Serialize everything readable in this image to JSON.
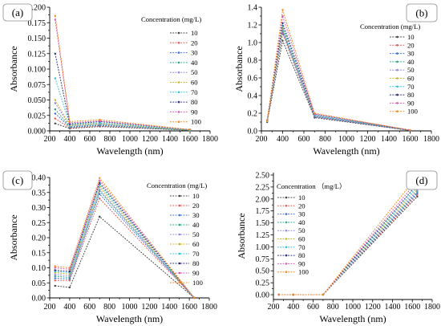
{
  "chart_data": [
    {
      "label": "(a)",
      "type": "line",
      "xlabel": "Wavelength (nm)",
      "ylabel": "Absorbance",
      "xlim": [
        200,
        1800
      ],
      "ylim": [
        0,
        0.2
      ],
      "xticks": [
        "200",
        "400",
        "600",
        "800",
        "1000",
        "1200",
        "1400",
        "1600",
        "1800"
      ],
      "yticks": [
        "0.000",
        "0.025",
        "0.050",
        "0.075",
        "0.100",
        "0.125",
        "0.150",
        "0.175",
        "0.200"
      ],
      "grid": false,
      "legend_title": "Concentration (mg/L)",
      "legend_position": "top-right",
      "x": [
        254,
        400,
        700,
        1600
      ],
      "series": [
        {
          "name": "10",
          "color": "#404040",
          "values": [
            0.012,
            0.004,
            0.007,
            0.001
          ]
        },
        {
          "name": "20",
          "color": "#e05a5a",
          "values": [
            0.02,
            0.005,
            0.008,
            0.001
          ]
        },
        {
          "name": "30",
          "color": "#3f6fd6",
          "values": [
            0.028,
            0.006,
            0.009,
            0.001
          ]
        },
        {
          "name": "40",
          "color": "#2ca58d",
          "values": [
            0.035,
            0.007,
            0.01,
            0.001
          ]
        },
        {
          "name": "50",
          "color": "#9a86e0",
          "values": [
            0.045,
            0.008,
            0.011,
            0.001
          ]
        },
        {
          "name": "60",
          "color": "#c9b42c",
          "values": [
            0.05,
            0.009,
            0.012,
            0.001
          ]
        },
        {
          "name": "70",
          "color": "#33c1d6",
          "values": [
            0.085,
            0.01,
            0.013,
            0.001
          ]
        },
        {
          "name": "80",
          "color": "#2b2f7a",
          "values": [
            0.125,
            0.011,
            0.015,
            0.002
          ]
        },
        {
          "name": "90",
          "color": "#d55ab4",
          "values": [
            0.18,
            0.013,
            0.016,
            0.002
          ]
        },
        {
          "name": "100",
          "color": "#f58a22",
          "values": [
            0.186,
            0.015,
            0.018,
            0.002
          ]
        }
      ]
    },
    {
      "label": "(b)",
      "type": "line",
      "xlabel": "Wavelength (nm)",
      "ylabel": "Absorbance",
      "xlim": [
        200,
        1800
      ],
      "ylim": [
        0,
        1.4
      ],
      "xticks": [
        "200",
        "400",
        "600",
        "800",
        "1000",
        "1200",
        "1400",
        "1600",
        "1800"
      ],
      "yticks": [
        "0.0",
        "0.2",
        "0.4",
        "0.6",
        "0.8",
        "1.0",
        "1.2",
        "1.4"
      ],
      "grid": false,
      "legend_title": "Concentration (mg/L)",
      "legend_position": "right",
      "x": [
        254,
        400,
        700,
        1600
      ],
      "series": [
        {
          "name": "10",
          "color": "#404040",
          "values": [
            0.1,
            1.02,
            0.15,
            0.005
          ]
        },
        {
          "name": "20",
          "color": "#e05a5a",
          "values": [
            0.11,
            1.1,
            0.16,
            0.005
          ]
        },
        {
          "name": "30",
          "color": "#3f6fd6",
          "values": [
            0.11,
            1.12,
            0.16,
            0.005
          ]
        },
        {
          "name": "40",
          "color": "#2ca58d",
          "values": [
            0.11,
            1.14,
            0.17,
            0.006
          ]
        },
        {
          "name": "50",
          "color": "#9a86e0",
          "values": [
            0.11,
            1.15,
            0.17,
            0.006
          ]
        },
        {
          "name": "60",
          "color": "#c9b42c",
          "values": [
            0.11,
            1.17,
            0.18,
            0.006
          ]
        },
        {
          "name": "70",
          "color": "#33c1d6",
          "values": [
            0.12,
            1.19,
            0.18,
            0.007
          ]
        },
        {
          "name": "80",
          "color": "#2b2f7a",
          "values": [
            0.12,
            1.22,
            0.19,
            0.007
          ]
        },
        {
          "name": "90",
          "color": "#d55ab4",
          "values": [
            0.12,
            1.3,
            0.19,
            0.008
          ]
        },
        {
          "name": "100",
          "color": "#f58a22",
          "values": [
            0.12,
            1.37,
            0.2,
            0.008
          ]
        }
      ]
    },
    {
      "label": "(c)",
      "type": "line",
      "xlabel": "Wavelength (nm)",
      "ylabel": "Absorbance",
      "xlim": [
        200,
        1800
      ],
      "ylim": [
        0,
        0.4
      ],
      "xticks": [
        "200",
        "400",
        "600",
        "800",
        "1000",
        "1200",
        "1400",
        "1600",
        "1800"
      ],
      "yticks": [
        "0.00",
        "0.05",
        "0.10",
        "0.15",
        "0.20",
        "0.25",
        "0.30",
        "0.35",
        "0.40"
      ],
      "grid": false,
      "legend_title": "Concentration (mg/L)",
      "legend_position": "top-right",
      "x": [
        254,
        400,
        700,
        1650
      ],
      "series": [
        {
          "name": "10",
          "color": "#404040",
          "values": [
            0.04,
            0.035,
            0.27,
            0.0
          ]
        },
        {
          "name": "20",
          "color": "#e05a5a",
          "values": [
            0.058,
            0.058,
            0.33,
            0.0
          ]
        },
        {
          "name": "30",
          "color": "#3f6fd6",
          "values": [
            0.065,
            0.063,
            0.345,
            0.0
          ]
        },
        {
          "name": "40",
          "color": "#2ca58d",
          "values": [
            0.072,
            0.068,
            0.355,
            0.0
          ]
        },
        {
          "name": "50",
          "color": "#9a86e0",
          "values": [
            0.078,
            0.073,
            0.36,
            0.0
          ]
        },
        {
          "name": "60",
          "color": "#c9b42c",
          "values": [
            0.084,
            0.079,
            0.368,
            0.0
          ]
        },
        {
          "name": "70",
          "color": "#33c1d6",
          "values": [
            0.088,
            0.084,
            0.375,
            0.0
          ]
        },
        {
          "name": "80",
          "color": "#2b2f7a",
          "values": [
            0.092,
            0.088,
            0.382,
            0.0
          ]
        },
        {
          "name": "90",
          "color": "#d55ab4",
          "values": [
            0.1,
            0.095,
            0.39,
            0.0
          ]
        },
        {
          "name": "100",
          "color": "#f58a22",
          "values": [
            0.105,
            0.1,
            0.398,
            0.0
          ]
        }
      ]
    },
    {
      "label": "(d)",
      "type": "line",
      "xlabel": "Wavelength (nm)",
      "ylabel": "Absorbance",
      "xlim": [
        200,
        1800
      ],
      "ylim": [
        -0.1,
        2.55
      ],
      "xticks": [
        "200",
        "400",
        "600",
        "800",
        "1000",
        "1200",
        "1400",
        "1600",
        "1800"
      ],
      "yticks": [
        "0.00",
        "0.25",
        "0.50",
        "0.75",
        "1.00",
        "1.25",
        "1.50",
        "1.75",
        "2.00",
        "2.25",
        "2.50"
      ],
      "grid": false,
      "legend_title": "Concentration （mg/L）",
      "legend_position": "top-left",
      "x": [
        254,
        400,
        700,
        1650
      ],
      "series": [
        {
          "name": "10",
          "color": "#404040",
          "values": [
            0,
            0,
            0,
            2.05
          ]
        },
        {
          "name": "20",
          "color": "#e05a5a",
          "values": [
            0,
            0,
            0,
            2.09
          ]
        },
        {
          "name": "30",
          "color": "#3f6fd6",
          "values": [
            0,
            0,
            0,
            2.12
          ]
        },
        {
          "name": "40",
          "color": "#2ca58d",
          "values": [
            0,
            0,
            0,
            2.15
          ]
        },
        {
          "name": "50",
          "color": "#9a86e0",
          "values": [
            0,
            0,
            0,
            2.18
          ]
        },
        {
          "name": "60",
          "color": "#c9b42c",
          "values": [
            0,
            0,
            0,
            2.22
          ]
        },
        {
          "name": "70",
          "color": "#33c1d6",
          "values": [
            0,
            0,
            0,
            2.26
          ]
        },
        {
          "name": "80",
          "color": "#2b2f7a",
          "values": [
            0,
            0,
            0,
            2.31
          ]
        },
        {
          "name": "90",
          "color": "#d55ab4",
          "values": [
            0,
            0,
            0,
            2.38
          ]
        },
        {
          "name": "100",
          "color": "#f58a22",
          "values": [
            0,
            0,
            0,
            2.48
          ]
        }
      ]
    }
  ]
}
